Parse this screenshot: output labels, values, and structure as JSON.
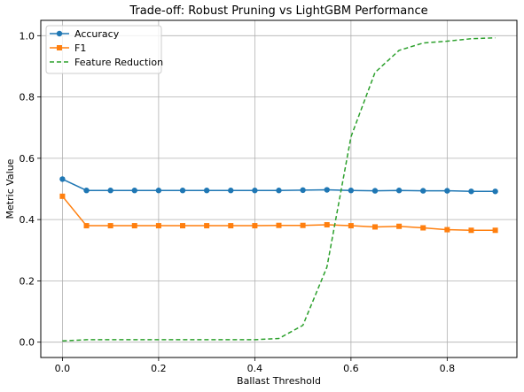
{
  "chart_data": {
    "type": "line",
    "title": "Trade-off: Robust Pruning vs LightGBM Performance",
    "xlabel": "Ballast Threshold",
    "ylabel": "Metric Value",
    "xlim": [
      -0.045,
      0.945
    ],
    "ylim": [
      -0.05,
      1.05
    ],
    "xticks": [
      "0.0",
      "0.2",
      "0.4",
      "0.6",
      "0.8"
    ],
    "yticks": [
      "0.0",
      "0.2",
      "0.4",
      "0.6",
      "0.8",
      "1.0"
    ],
    "grid": true,
    "legend_position": "top-left",
    "x": [
      0.0,
      0.05,
      0.1,
      0.15,
      0.2,
      0.25,
      0.3,
      0.35,
      0.4,
      0.45,
      0.5,
      0.55,
      0.6,
      0.65,
      0.7,
      0.75,
      0.8,
      0.85,
      0.9
    ],
    "series": [
      {
        "name": "Accuracy",
        "color": "#1f77b4",
        "marker": "circle",
        "style": "solid",
        "values": [
          0.532,
          0.495,
          0.495,
          0.495,
          0.495,
          0.495,
          0.495,
          0.495,
          0.495,
          0.495,
          0.496,
          0.497,
          0.495,
          0.494,
          0.495,
          0.494,
          0.494,
          0.492,
          0.492
        ]
      },
      {
        "name": "F1",
        "color": "#ff7f0e",
        "marker": "square",
        "style": "solid",
        "values": [
          0.476,
          0.38,
          0.38,
          0.38,
          0.38,
          0.38,
          0.38,
          0.38,
          0.38,
          0.381,
          0.381,
          0.383,
          0.38,
          0.376,
          0.378,
          0.373,
          0.367,
          0.365,
          0.365
        ]
      },
      {
        "name": "Feature Reduction",
        "color": "#2ca02c",
        "marker": "none",
        "style": "dashed",
        "values": [
          0.004,
          0.008,
          0.008,
          0.008,
          0.008,
          0.008,
          0.008,
          0.008,
          0.008,
          0.012,
          0.055,
          0.245,
          0.67,
          0.88,
          0.952,
          0.976,
          0.982,
          0.99,
          0.993
        ]
      }
    ]
  }
}
